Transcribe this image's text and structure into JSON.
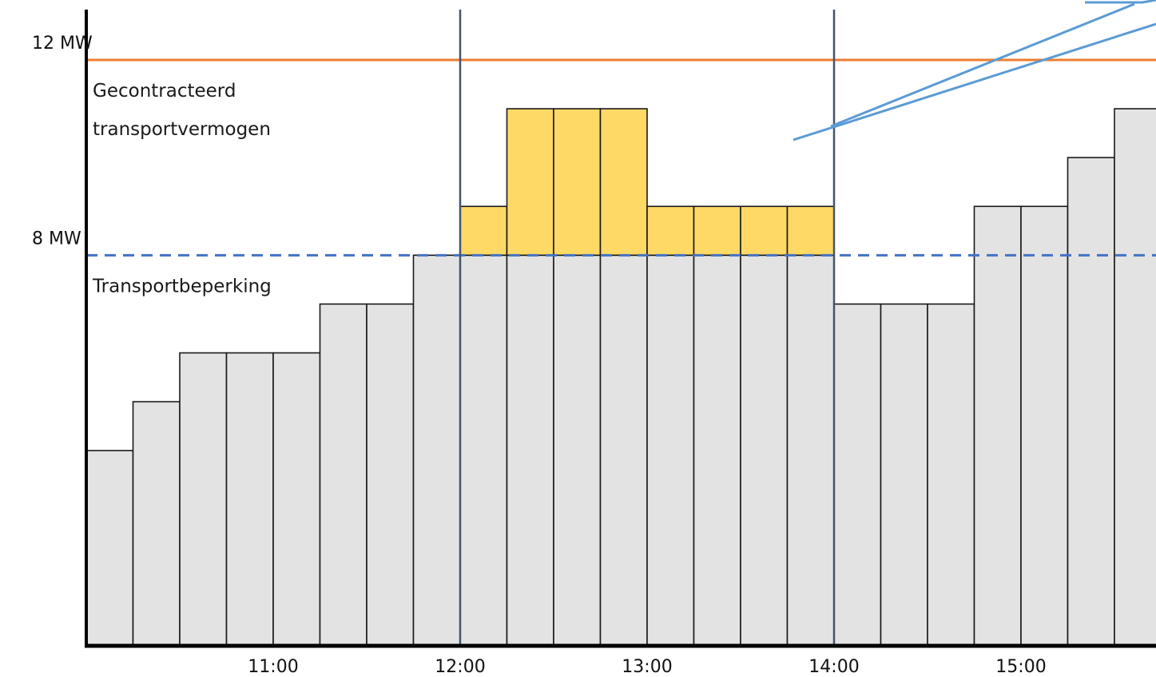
{
  "chart_data": {
    "type": "bar",
    "title": "",
    "xlabel": "",
    "ylabel": "",
    "ylim": [
      0,
      12.9
    ],
    "y_ticks": [
      "12 MW",
      "8 MW"
    ],
    "x_tick_labels": [
      "11:00",
      "12:00",
      "13:00",
      "14:00",
      "15:00"
    ],
    "interval_minutes": 15,
    "series": [
      {
        "values": [
          4.0,
          5.0,
          6.0,
          6.0,
          6.0,
          7.0,
          7.0,
          8.0,
          8.0,
          8.0,
          8.0,
          8.0,
          8.0,
          8.0,
          8.0,
          8.0,
          7.0,
          7.0,
          7.0,
          9.0,
          9.0,
          10.0,
          11.0
        ]
      },
      {
        "values": [
          0,
          0,
          0,
          0,
          0,
          0,
          0,
          0,
          1.0,
          3.0,
          3.0,
          3.0,
          1.0,
          1.0,
          1.0,
          1.0,
          0,
          0,
          0,
          0,
          0,
          0,
          0
        ]
      }
    ],
    "reference_lines": [
      {
        "value": 12,
        "label_lines": [
          "Gecontracteerd",
          "transportvermogen"
        ],
        "style": "solid",
        "color": "#ED7D31"
      },
      {
        "value": 8,
        "label_lines": [
          "Transportbeperking"
        ],
        "style": "dashed",
        "color": "#4472C4"
      }
    ],
    "vertical_markers": [
      "12:00",
      "14:00"
    ],
    "colors": {
      "base_fill": "#E3E3E3",
      "excess_fill": "#FFD966",
      "bar_stroke": "#1a1a1a",
      "marker_line": "#44546A",
      "callout": "#5B9BD5",
      "axis": "#000000"
    },
    "grid": false
  }
}
